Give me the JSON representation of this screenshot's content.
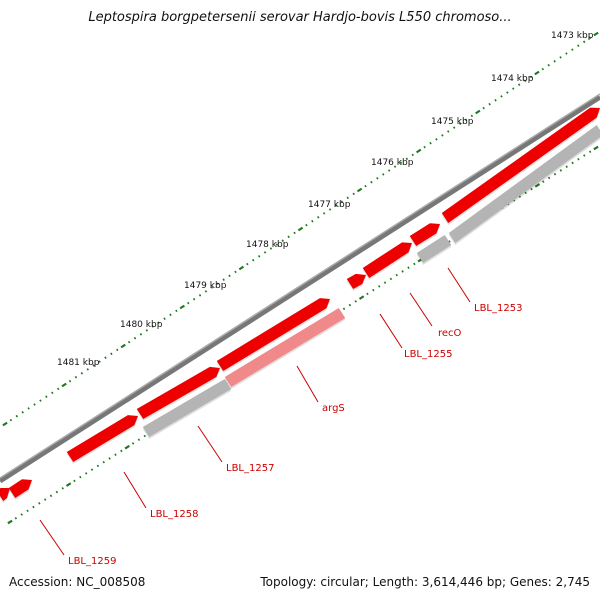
{
  "title": "Leptospira borgpetersenii serovar Hardjo-bovis L550 chromoso...",
  "footer": {
    "accession": "Accession: NC_008508",
    "topology": "Topology: circular; Length: 3,614,446 bp; Genes: 2,745"
  },
  "scale": {
    "unit": "kbp",
    "ticks": [
      "1473 kbp",
      "1474 kbp",
      "1475 kbp",
      "1476 kbp",
      "1477 kbp",
      "1478 kbp",
      "1479 kbp",
      "1480 kbp",
      "1481 kbp"
    ]
  },
  "colors": {
    "backbone": "#7a7a7a",
    "gene": "#ee0000",
    "gene_light": "#f08a8a",
    "cds": "#b4b4b4",
    "tick": "#1f7a1f",
    "label": "#cc0000"
  },
  "gene_labels": [
    "LBL_1253",
    "recO",
    "LBL_1255",
    "argS",
    "LBL_1257",
    "LBL_1258",
    "LBL_1259"
  ]
}
